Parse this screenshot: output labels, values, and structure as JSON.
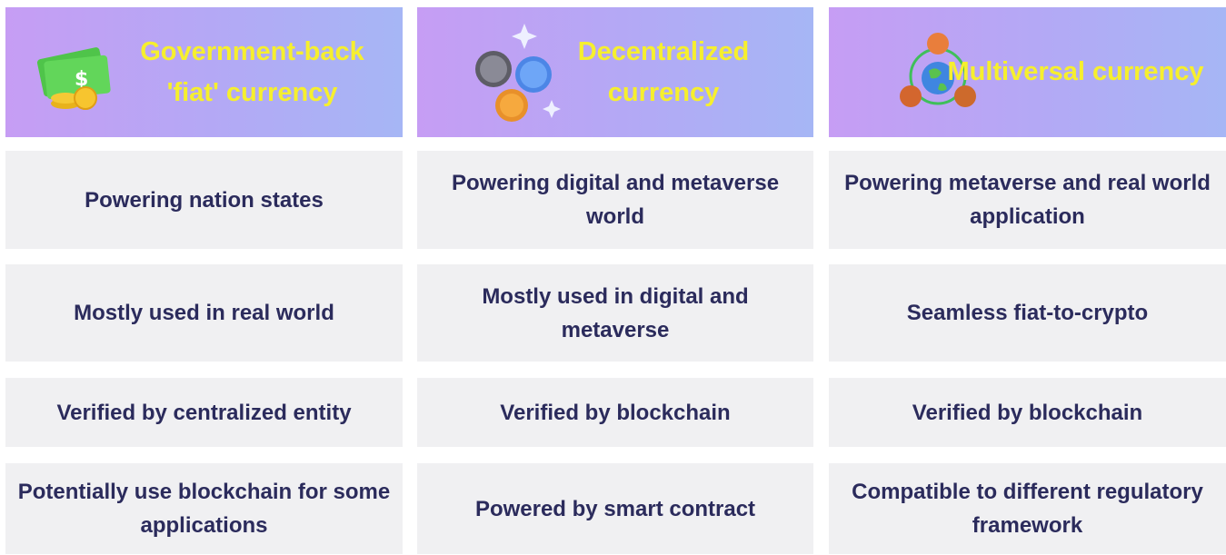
{
  "columns": [
    {
      "title": "Government-back 'fiat' currency",
      "rows": [
        "Powering nation states",
        "Mostly used in real world",
        "Verified by centralized entity",
        "Potentially use blockchain for some applications"
      ]
    },
    {
      "title": "Decentralized currency",
      "rows": [
        "Powering digital and metaverse world",
        "Mostly used in digital and metaverse",
        "Verified by blockchain",
        "Powered by smart contract"
      ]
    },
    {
      "title": "Multiversal currency",
      "rows": [
        "Powering metaverse and real world application",
        "Seamless fiat-to-crypto",
        "Verified by blockchain",
        "Compatible to different regulatory framework"
      ]
    }
  ]
}
